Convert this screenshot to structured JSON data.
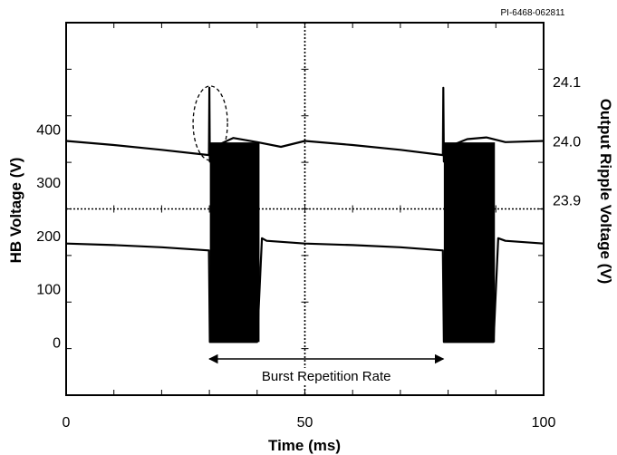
{
  "figure_id": "PI-6468-062811",
  "chart_data": {
    "type": "line",
    "xlabel": "Time (ms)",
    "x_ticks": [
      "0",
      "50",
      "100"
    ],
    "xlim": [
      0,
      100
    ],
    "grid": true,
    "y_left": {
      "label": "HB Voltage (V)",
      "ticks": [
        "0",
        "100",
        "200",
        "300",
        "400"
      ],
      "range": [
        -100,
        600
      ]
    },
    "y_right": {
      "label": "Output Ripple Voltage (V)",
      "ticks": [
        "23.9",
        "24.0",
        "24.1"
      ],
      "range": [
        23.57,
        24.2
      ]
    },
    "series": [
      {
        "axis": "right",
        "x": [
          0,
          10,
          20,
          29.9,
          30.0,
          30.1,
          31,
          35,
          40,
          45,
          50,
          60,
          70,
          78.9,
          79.0,
          79.1,
          80,
          84,
          88,
          92,
          100
        ],
        "values": [
          24.0,
          23.993,
          23.985,
          23.976,
          24.09,
          23.965,
          23.99,
          24.005,
          23.998,
          23.99,
          24.0,
          23.993,
          23.985,
          23.976,
          24.09,
          23.965,
          23.99,
          24.003,
          24.006,
          23.998,
          24.0
        ]
      },
      {
        "axis": "left",
        "x": [
          0,
          10,
          20,
          29.9,
          30.1,
          40.0,
          41.0,
          42,
          50,
          60,
          70,
          78.9,
          79.1,
          89.5,
          90.5,
          92,
          100
        ],
        "values": [
          185,
          182,
          178,
          172,
          0,
          0,
          195,
          190,
          185,
          182,
          178,
          172,
          0,
          0,
          195,
          190,
          185
        ],
        "bursts": [
          {
            "start": 30.1,
            "end": 40.5,
            "min": 0,
            "max": 375
          },
          {
            "start": 79.1,
            "end": 89.8,
            "min": 0,
            "max": 375
          }
        ]
      }
    ],
    "annotations": [
      {
        "text": "Burst Repetition Rate",
        "from_x": 30,
        "to_x": 79
      },
      {
        "text": "",
        "shape": "dashed-ellipse",
        "x": 30,
        "y": 24.03
      }
    ]
  }
}
